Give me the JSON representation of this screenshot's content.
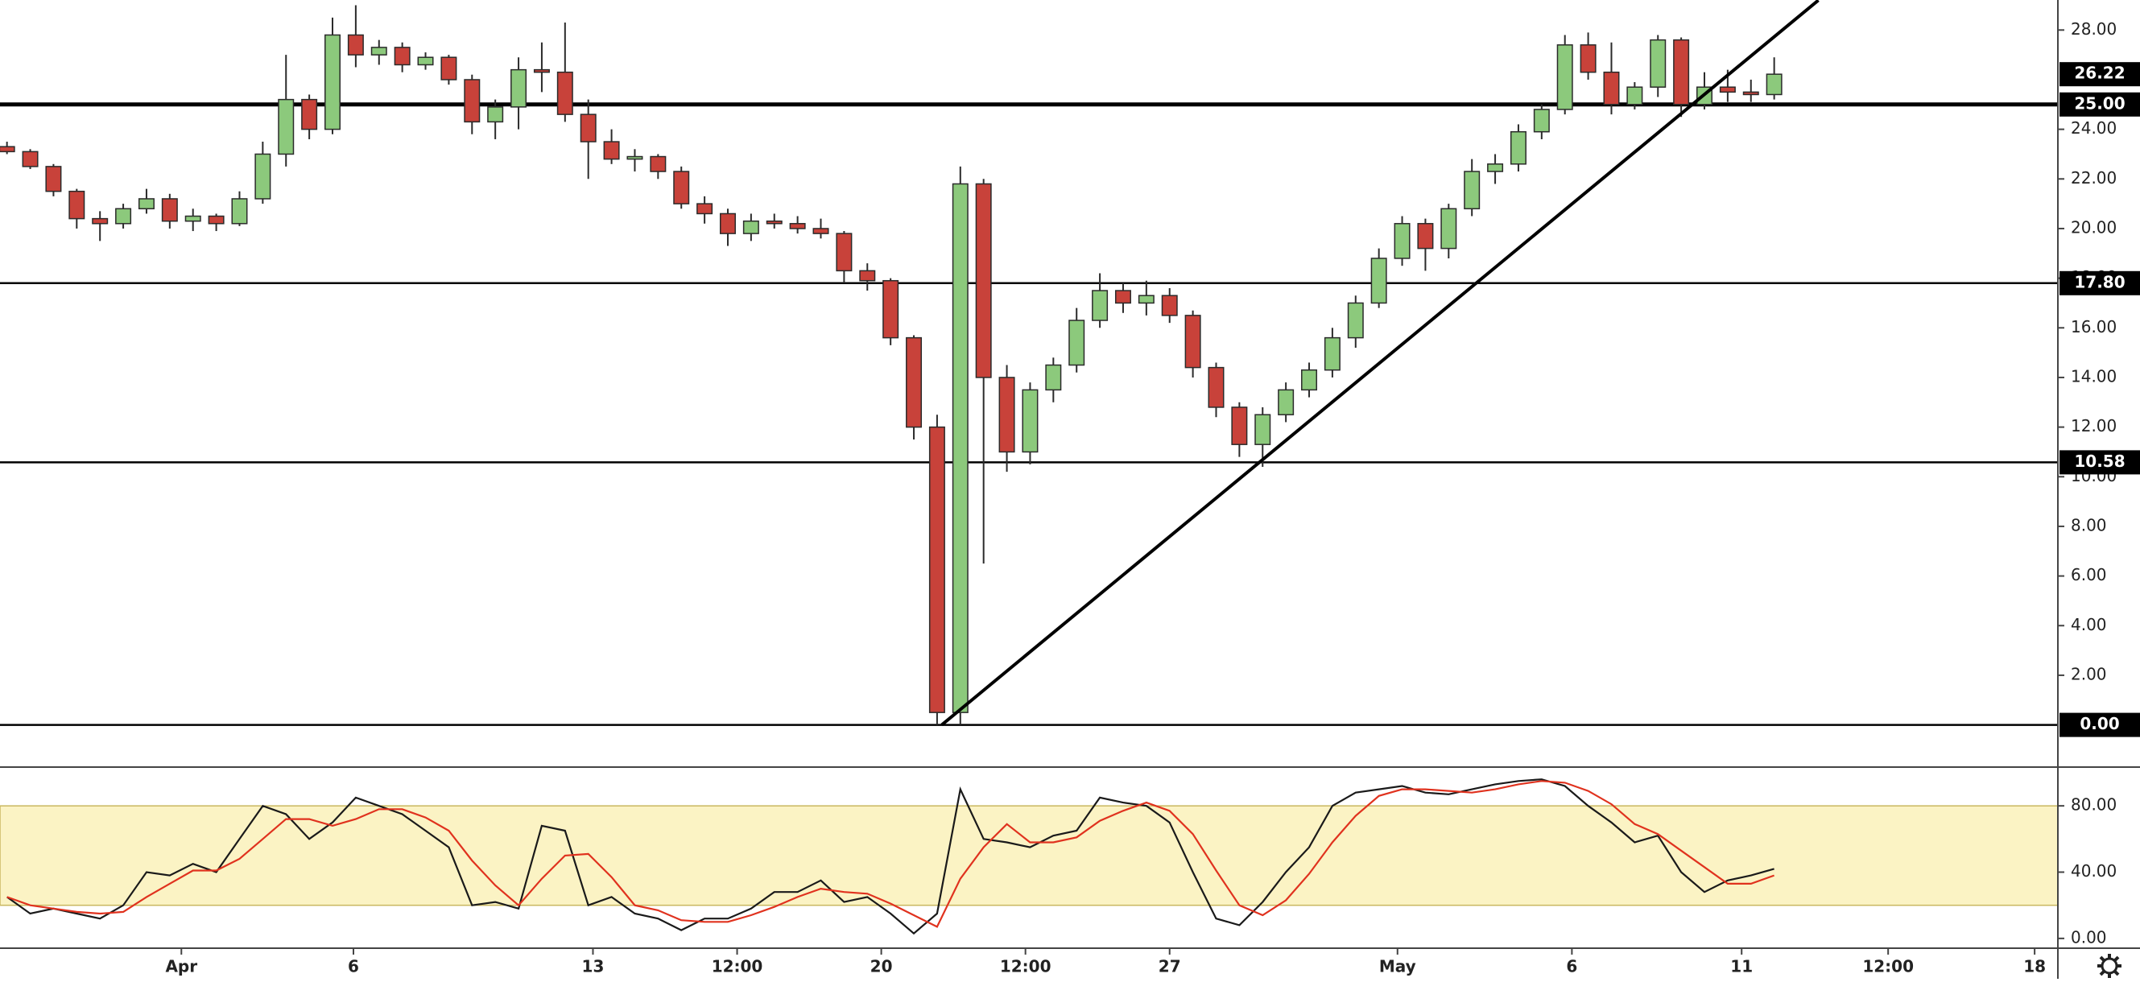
{
  "chart_data": {
    "type": "candlestick",
    "x": [
      0,
      1,
      2,
      3,
      4,
      5,
      6,
      7,
      8,
      9,
      10,
      11,
      12,
      13,
      14,
      15,
      16,
      17,
      18,
      19,
      20,
      21,
      22,
      23,
      24,
      25,
      26,
      27,
      28,
      29,
      30,
      31,
      32,
      33,
      34,
      35,
      36,
      37,
      38,
      39,
      40,
      41,
      42,
      43,
      44,
      45,
      46,
      47,
      48,
      49,
      50,
      51,
      52,
      53,
      54,
      55,
      56,
      57,
      58,
      59,
      60,
      61,
      62,
      63,
      64,
      65,
      66,
      67,
      68,
      69,
      70,
      71,
      72,
      73,
      74,
      75,
      76
    ],
    "open": [
      23.3,
      23.1,
      22.5,
      21.5,
      20.4,
      20.2,
      20.8,
      21.2,
      20.3,
      20.5,
      20.2,
      21.2,
      23.0,
      25.2,
      24.0,
      27.8,
      27.0,
      27.3,
      26.6,
      26.9,
      26.0,
      24.3,
      24.9,
      26.4,
      26.3,
      24.6,
      23.5,
      22.8,
      22.9,
      22.3,
      21.0,
      20.6,
      19.8,
      20.3,
      20.2,
      20.0,
      19.8,
      18.3,
      17.9,
      15.6,
      12.0,
      0.5,
      21.8,
      14.0,
      11.0,
      13.5,
      14.5,
      16.3,
      17.5,
      17.0,
      17.3,
      16.5,
      14.4,
      12.8,
      11.3,
      12.5,
      13.5,
      14.3,
      15.6,
      17.0,
      18.8,
      20.2,
      19.2,
      20.8,
      22.3,
      22.6,
      23.9,
      24.8,
      27.4,
      26.3,
      25.0,
      25.7,
      27.6,
      25.0,
      25.7,
      25.5,
      25.4
    ],
    "high": [
      23.5,
      23.2,
      22.6,
      21.6,
      20.7,
      21.0,
      21.6,
      21.4,
      20.8,
      20.6,
      21.5,
      23.5,
      27.0,
      25.4,
      28.5,
      29.0,
      27.6,
      27.5,
      27.1,
      27.0,
      26.2,
      25.2,
      26.9,
      27.5,
      28.3,
      25.2,
      24.0,
      23.2,
      23.0,
      22.5,
      21.3,
      20.8,
      20.6,
      20.6,
      20.5,
      20.4,
      19.9,
      18.6,
      18.0,
      15.7,
      12.5,
      22.5,
      22.0,
      14.5,
      13.8,
      14.8,
      16.8,
      18.2,
      17.8,
      17.9,
      17.6,
      16.7,
      14.6,
      13.0,
      12.8,
      13.8,
      14.6,
      16.0,
      17.3,
      19.2,
      20.5,
      20.4,
      21.0,
      22.8,
      23.0,
      24.2,
      25.0,
      27.8,
      27.9,
      27.5,
      25.9,
      27.8,
      27.7,
      26.3,
      26.4,
      26.0,
      26.9
    ],
    "low": [
      23.0,
      22.4,
      21.3,
      20.0,
      19.5,
      20.0,
      20.6,
      20.0,
      19.9,
      19.9,
      20.1,
      21.0,
      22.5,
      23.6,
      23.8,
      26.5,
      26.6,
      26.3,
      26.4,
      25.8,
      23.8,
      23.6,
      24.0,
      25.5,
      24.3,
      22.0,
      22.6,
      22.3,
      22.0,
      20.8,
      20.2,
      19.3,
      19.5,
      20.0,
      19.8,
      19.6,
      17.8,
      17.5,
      15.3,
      11.5,
      0,
      0,
      6.5,
      10.2,
      10.5,
      13.0,
      14.2,
      16.0,
      16.6,
      16.5,
      16.2,
      14.0,
      12.4,
      10.8,
      10.4,
      12.2,
      13.2,
      14.0,
      15.2,
      16.8,
      18.5,
      18.3,
      18.8,
      20.5,
      21.8,
      22.3,
      23.6,
      24.6,
      26.0,
      24.6,
      24.8,
      25.3,
      24.5,
      24.8,
      25.1,
      25.1,
      25.2
    ],
    "close": [
      23.1,
      22.5,
      21.5,
      20.4,
      20.2,
      20.8,
      21.2,
      20.3,
      20.5,
      20.2,
      21.2,
      23.0,
      25.2,
      24.0,
      27.8,
      27.0,
      27.3,
      26.6,
      26.9,
      26.0,
      24.3,
      24.9,
      26.4,
      26.3,
      24.6,
      23.5,
      22.8,
      22.9,
      22.3,
      21.0,
      20.6,
      19.8,
      20.3,
      20.2,
      20.0,
      19.8,
      18.3,
      17.9,
      15.6,
      12.0,
      0.5,
      21.8,
      14.0,
      11.0,
      13.5,
      14.5,
      16.3,
      17.5,
      17.0,
      17.3,
      16.5,
      14.4,
      12.8,
      11.3,
      12.5,
      13.5,
      14.3,
      15.6,
      17.0,
      18.8,
      20.2,
      19.2,
      20.8,
      22.3,
      22.6,
      23.9,
      24.8,
      27.4,
      26.3,
      25.0,
      25.7,
      27.6,
      25.0,
      25.7,
      25.5,
      25.4,
      26.22
    ],
    "up_color": "#8cc97c",
    "down_color": "#c8423a",
    "outline_color": "#2b2b2b",
    "xlim": [
      -0.3,
      88.2
    ],
    "ylim": [
      -1.7,
      29.21
    ],
    "yticks": [
      {
        "value": 2,
        "label": "2.00"
      },
      {
        "value": 4,
        "label": "4.00"
      },
      {
        "value": 6,
        "label": "6.00"
      },
      {
        "value": 8,
        "label": "8.00"
      },
      {
        "value": 10,
        "label": "10.00"
      },
      {
        "value": 12,
        "label": "12.00"
      },
      {
        "value": 14,
        "label": "14.00"
      },
      {
        "value": 16,
        "label": "16.00"
      },
      {
        "value": 18,
        "label": "18.00"
      },
      {
        "value": 20,
        "label": "20.00"
      },
      {
        "value": 22,
        "label": "22.00"
      },
      {
        "value": 24,
        "label": "24.00"
      },
      {
        "value": 28,
        "label": "28.00"
      }
    ],
    "xticks": [
      {
        "value": 7.5,
        "label": "Apr"
      },
      {
        "value": 14.9,
        "label": "6"
      },
      {
        "value": 25.2,
        "label": "13"
      },
      {
        "value": 31.4,
        "label": "12:00"
      },
      {
        "value": 37.6,
        "label": "20"
      },
      {
        "value": 43.8,
        "label": "12:00"
      },
      {
        "value": 50.0,
        "label": "27"
      },
      {
        "value": 59.8,
        "label": "May"
      },
      {
        "value": 67.3,
        "label": "6"
      },
      {
        "value": 74.6,
        "label": "11"
      },
      {
        "value": 80.9,
        "label": "12:00"
      },
      {
        "value": 87.2,
        "label": "18"
      }
    ],
    "levels": [
      {
        "value": 25,
        "label": "25.00",
        "thick": true
      },
      {
        "value": 17.8,
        "label": "17.80"
      },
      {
        "value": 10.58,
        "label": "10.58"
      },
      {
        "value": 0,
        "label": "0.00"
      }
    ],
    "price_label": {
      "value": 26.22,
      "label": "26.22"
    },
    "trendline": {
      "x": [
        40.2,
        77.9
      ],
      "y": [
        0,
        29.2
      ]
    },
    "stochastic": {
      "ylim": [
        -5.9,
        103.4
      ],
      "yticks": [
        {
          "value": 0,
          "label": "0.00"
        },
        {
          "value": 40,
          "label": "40.00"
        },
        {
          "value": 80,
          "label": "80.00"
        }
      ],
      "band": [
        20,
        80
      ],
      "band_color": "#fbf3c4",
      "series": [
        {
          "color": "#1a1a1a",
          "values": [
            25,
            15,
            18,
            15,
            12,
            20,
            40,
            38,
            45,
            40,
            60,
            80,
            75,
            60,
            70,
            85,
            80,
            75,
            65,
            55,
            20,
            22,
            18,
            68,
            65,
            20,
            25,
            15,
            12,
            5,
            12,
            12,
            18,
            28,
            28,
            35,
            22,
            25,
            15,
            3,
            15,
            90,
            60,
            58,
            55,
            62,
            65,
            85,
            82,
            80,
            70,
            40,
            12,
            8,
            22,
            40,
            55,
            80,
            88,
            90,
            92,
            88,
            87,
            90,
            93,
            95,
            96,
            92,
            80,
            70,
            58,
            62,
            40,
            28,
            35,
            38,
            42
          ]
        },
        {
          "color": "#e0321e",
          "values": [
            25,
            20,
            18,
            16,
            15,
            16,
            25,
            33,
            41,
            41,
            48,
            60,
            72,
            72,
            68,
            72,
            78,
            78,
            73,
            65,
            47,
            32,
            20,
            36,
            50,
            51,
            37,
            20,
            17,
            11,
            10,
            10,
            14,
            19,
            25,
            30,
            28,
            27,
            21,
            14,
            7,
            36,
            55,
            69,
            58,
            58,
            61,
            71,
            77,
            82,
            77,
            63,
            41,
            20,
            14,
            23,
            39,
            58,
            74,
            86,
            90,
            90,
            89,
            88,
            90,
            93,
            95,
            94,
            89,
            81,
            69,
            63,
            53,
            43,
            33,
            33,
            38
          ]
        }
      ]
    }
  }
}
